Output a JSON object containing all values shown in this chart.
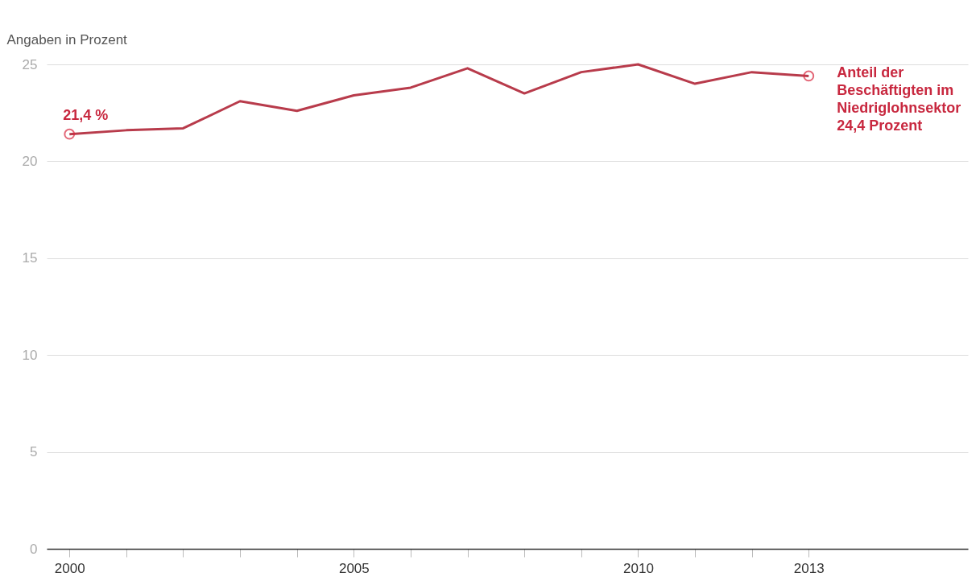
{
  "chart_data": {
    "type": "line",
    "ylabel": "Angaben in Prozent",
    "x": [
      2000,
      2001,
      2002,
      2003,
      2004,
      2005,
      2006,
      2007,
      2008,
      2009,
      2010,
      2011,
      2012,
      2013
    ],
    "series": [
      {
        "color": "#b83b4b",
        "values": [
          21.4,
          21.6,
          21.7,
          23.1,
          22.6,
          23.4,
          23.8,
          24.8,
          23.5,
          24.6,
          25.0,
          24.0,
          24.6,
          24.4
        ]
      }
    ],
    "xlim": [
      1999.6,
      2015.8
    ],
    "ylim": [
      0,
      25
    ],
    "xticks": [
      2000,
      {
        "value": 2001,
        "label": null
      },
      {
        "value": 2002,
        "label": null
      },
      {
        "value": 2003,
        "label": null
      },
      {
        "value": 2004,
        "label": null
      },
      2005,
      {
        "value": 2006,
        "label": null
      },
      {
        "value": 2007,
        "label": null
      },
      {
        "value": 2008,
        "label": null
      },
      {
        "value": 2009,
        "label": null
      },
      2010,
      {
        "value": 2011,
        "label": null
      },
      {
        "value": 2012,
        "label": null
      },
      2013
    ],
    "yticks": [
      0,
      5,
      10,
      15,
      20,
      25
    ],
    "grid": "y",
    "line_style": "solid",
    "annotations": [
      {
        "text": "21,4 %",
        "x": 2000,
        "y": 21.4
      },
      {
        "text": "Anteil der\nBeschäftigten im\nNiedriglohnsektor\n24,4 Prozent",
        "x": 2013,
        "y": 24.4
      }
    ]
  }
}
